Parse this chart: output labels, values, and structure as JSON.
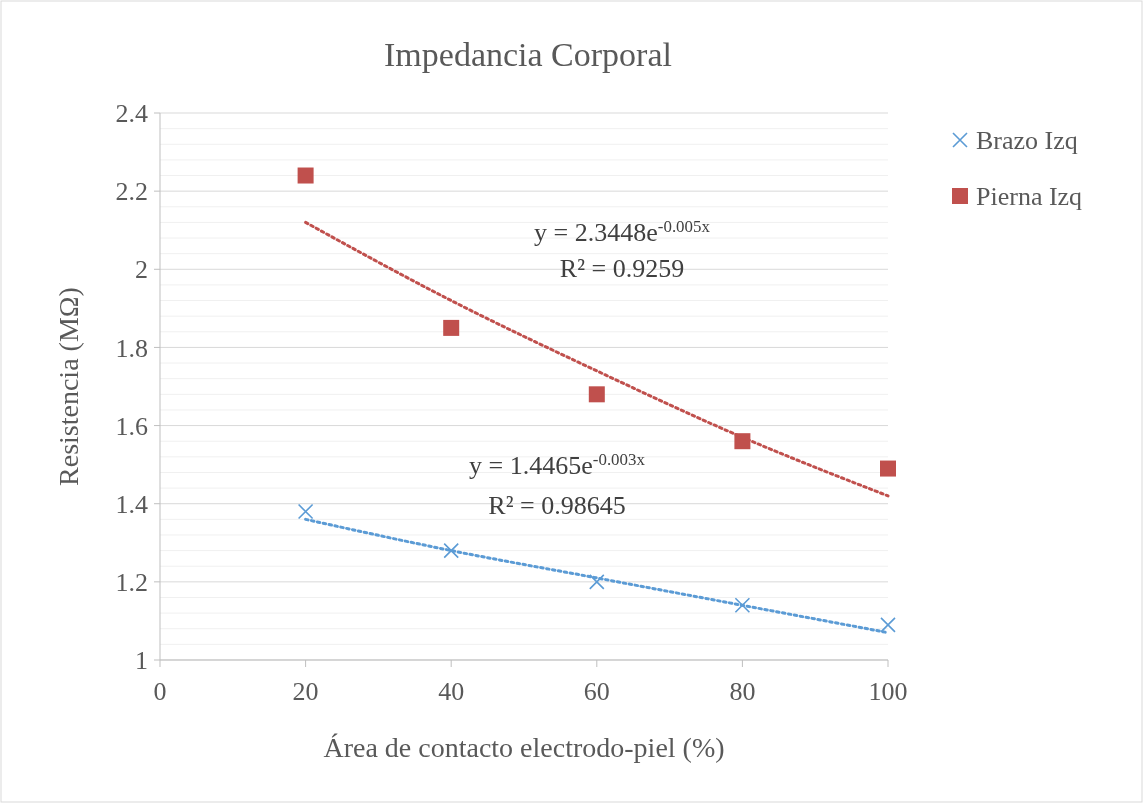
{
  "chart_data": {
    "type": "scatter",
    "title": "Impedancia Corporal",
    "xlabel": "Área de contacto electrodo-piel (%)",
    "ylabel": "Resistencia (MΩ)",
    "x": [
      20,
      40,
      60,
      80,
      100
    ],
    "series": [
      {
        "name": "Brazo Izq",
        "color": "#5b9bd5",
        "marker": "cross",
        "values": [
          1.38,
          1.28,
          1.2,
          1.14,
          1.09
        ]
      },
      {
        "name": "Pierna Izq",
        "color": "#c0504d",
        "marker": "square",
        "values": [
          2.24,
          1.85,
          1.68,
          1.56,
          1.49
        ]
      },
      {
        "type": "line",
        "color": "#5b9bd5",
        "line_style": "dotted",
        "x": [
          20,
          40,
          60,
          80,
          100
        ],
        "values": [
          1.36,
          1.28,
          1.21,
          1.14,
          1.07
        ]
      },
      {
        "type": "line",
        "color": "#c0504d",
        "line_style": "dotted",
        "x": [
          20,
          40,
          60,
          80,
          100
        ],
        "values": [
          2.12,
          1.92,
          1.74,
          1.57,
          1.42
        ]
      }
    ],
    "annotations": [
      "y = 2.3448e$^{-0.005x}$",
      "R² = 0.9259",
      "y = 1.4465e$^{-0.003x}$",
      "R² = 0.98645"
    ],
    "xlim": [
      0,
      100
    ],
    "xticks": [
      0,
      20,
      40,
      60,
      80,
      100
    ],
    "ylim": [
      1,
      2.4
    ],
    "yticks": [
      1,
      1.2,
      1.4,
      1.6,
      1.8,
      2,
      2.2,
      2.4
    ],
    "grid": "y",
    "legend": "top right"
  }
}
